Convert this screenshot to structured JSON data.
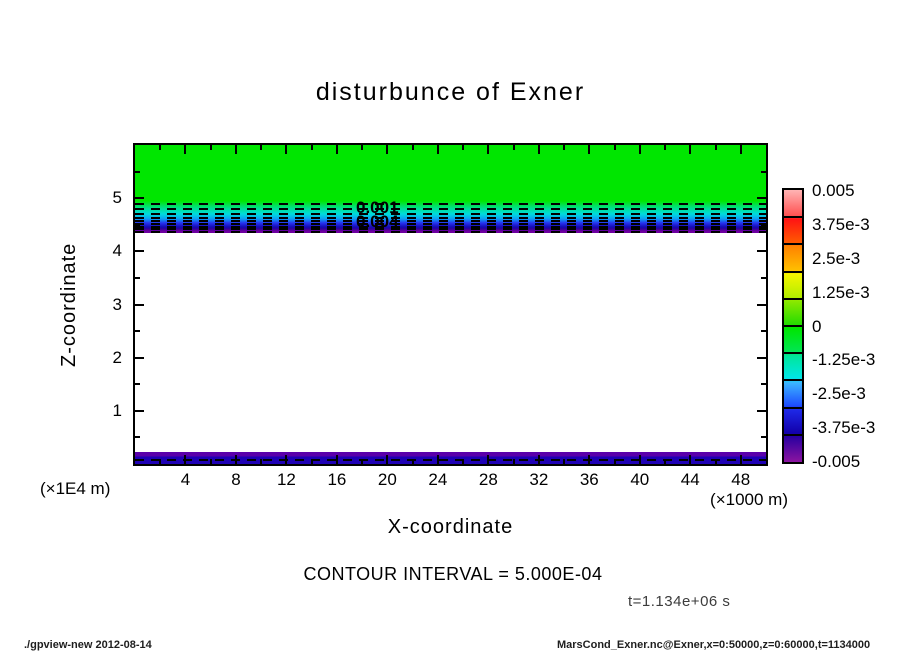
{
  "title": "disturbunce of Exner",
  "axes": {
    "x": {
      "label": "X-coordinate",
      "unit": "(×1000 m)",
      "ticks": [
        "4",
        "8",
        "12",
        "16",
        "20",
        "24",
        "28",
        "32",
        "36",
        "40",
        "44",
        "48"
      ]
    },
    "y": {
      "label": "Z-coordinate",
      "unit": "(×1E4 m)",
      "ticks": [
        "5",
        "4",
        "3",
        "2",
        "1"
      ]
    }
  },
  "plot": {
    "contour_labels": [
      "0.001",
      "0.004"
    ]
  },
  "colorbar": {
    "labels": [
      "0.005",
      "3.75e-3",
      "2.5e-3",
      "1.25e-3",
      "0",
      "-1.25e-3",
      "-2.5e-3",
      "-3.75e-3",
      "-0.005"
    ]
  },
  "annotations": {
    "contour_interval": "CONTOUR INTERVAL = 5.000E-04",
    "time": "t=1.134e+06 s"
  },
  "footer": {
    "left": "./gpview-new  2012-08-14",
    "right": "MarsCond_Exner.nc@Exner,x=0:50000,z=0:60000,t=1134000"
  },
  "colors": {
    "background": "#ffffff",
    "ink": "#000000",
    "tone_green": "#00e600",
    "tone_cyan": "#00e6e6",
    "tone_blue": "#1e3cff",
    "tone_navy": "#1400aa",
    "tone_purple": "#8c14a0"
  },
  "chart_data": {
    "type": "heatmap",
    "title": "disturbunce of Exner",
    "xlabel": "X-coordinate",
    "x_unit": "×1000 m",
    "ylabel": "Z-coordinate",
    "y_unit": "×1E4 m",
    "xlim": [
      0,
      50
    ],
    "ylim": [
      0,
      6
    ],
    "x_ticks": [
      4,
      8,
      12,
      16,
      20,
      24,
      28,
      32,
      36,
      40,
      44,
      48
    ],
    "y_ticks": [
      1,
      2,
      3,
      4,
      5
    ],
    "grid": false,
    "legend_position": "right-colorbar",
    "contour_interval": 0.0005,
    "contour_style": "dashed (negative values)",
    "visible_contour_labels": [
      0.001,
      0.004
    ],
    "time_seconds": 1134000,
    "colorbar": {
      "min": -0.005,
      "max": 0.005,
      "tick_values": [
        0.005,
        0.00375,
        0.0025,
        0.00125,
        0,
        -0.00125,
        -0.0025,
        -0.00375,
        -0.005
      ],
      "palette_top_to_bottom": [
        "#ffb4b4",
        "#ff1414",
        "#ff8200",
        "#f5f500",
        "#8ce800",
        "#00e600",
        "#00e69b",
        "#00e6e6",
        "#1e50ff",
        "#1200aa",
        "#8c14a0"
      ]
    },
    "features": [
      {
        "name": "upper-region",
        "x_range": [
          0,
          50
        ],
        "z_range": [
          4.9,
          6.0
        ],
        "value": "≈0 (green tone)"
      },
      {
        "name": "negative-contour-layer",
        "x_range": [
          0,
          50
        ],
        "z_range": [
          4.35,
          4.9
        ],
        "value": "≈ -0.0005 to -0.005, dense dashed contours, tones green→cyan→blue→navy→purple"
      },
      {
        "name": "interior",
        "x_range": [
          0,
          50
        ],
        "z_range": [
          0.28,
          4.35
        ],
        "value": "blank/white (beyond -0.005 tone range)"
      },
      {
        "name": "surface-layer",
        "x_range": [
          0,
          50
        ],
        "z_range": [
          0,
          0.28
        ],
        "value": "≈ -0.004 to -0.005 (navy band with purple top), one dashed contour"
      }
    ]
  }
}
